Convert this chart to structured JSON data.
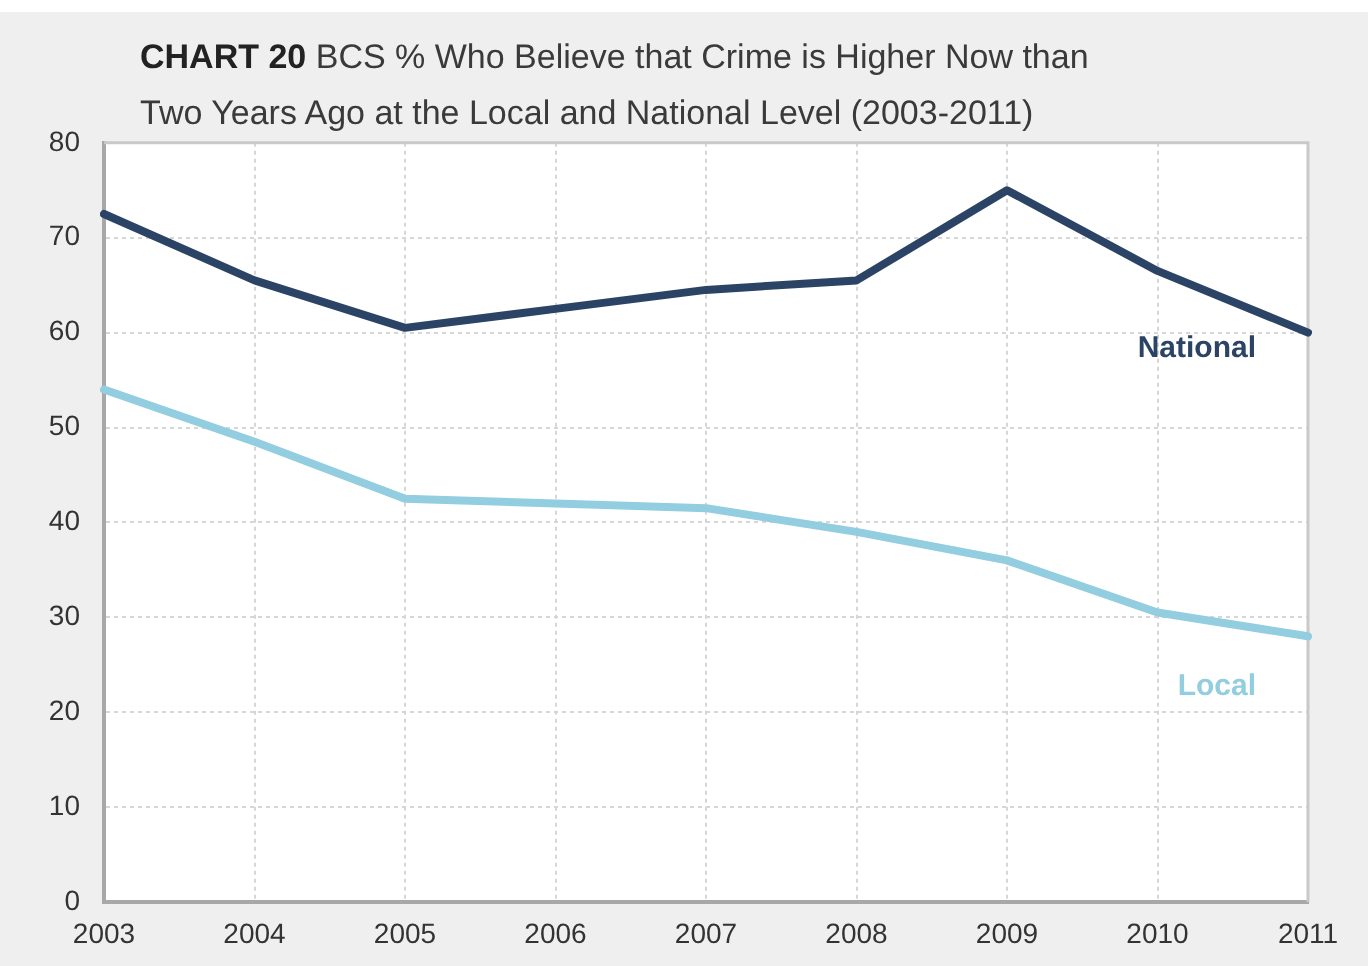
{
  "chart_data": {
    "type": "line",
    "title": "CHART 20 BCS % Who Believe that Crime is Higher Now than Two Years Ago at the Local and National Level (2003-2011)",
    "categories": [
      "2003",
      "2004",
      "2005",
      "2006",
      "2007",
      "2008",
      "2009",
      "2010",
      "2011"
    ],
    "series": [
      {
        "name": "National",
        "color": "#2b4465",
        "values": [
          72.5,
          65.5,
          60.5,
          62.5,
          64.5,
          65.5,
          75,
          66.5,
          60
        ]
      },
      {
        "name": "Local",
        "color": "#92cde0",
        "values": [
          54,
          48.5,
          42.5,
          42,
          41.5,
          39,
          36,
          30.5,
          28
        ]
      }
    ],
    "ylim": [
      0,
      80
    ],
    "yticks": [
      0,
      10,
      20,
      30,
      40,
      50,
      60,
      70,
      80
    ],
    "grid": true,
    "legend": false,
    "marker": "none",
    "line_style": "solid"
  }
}
